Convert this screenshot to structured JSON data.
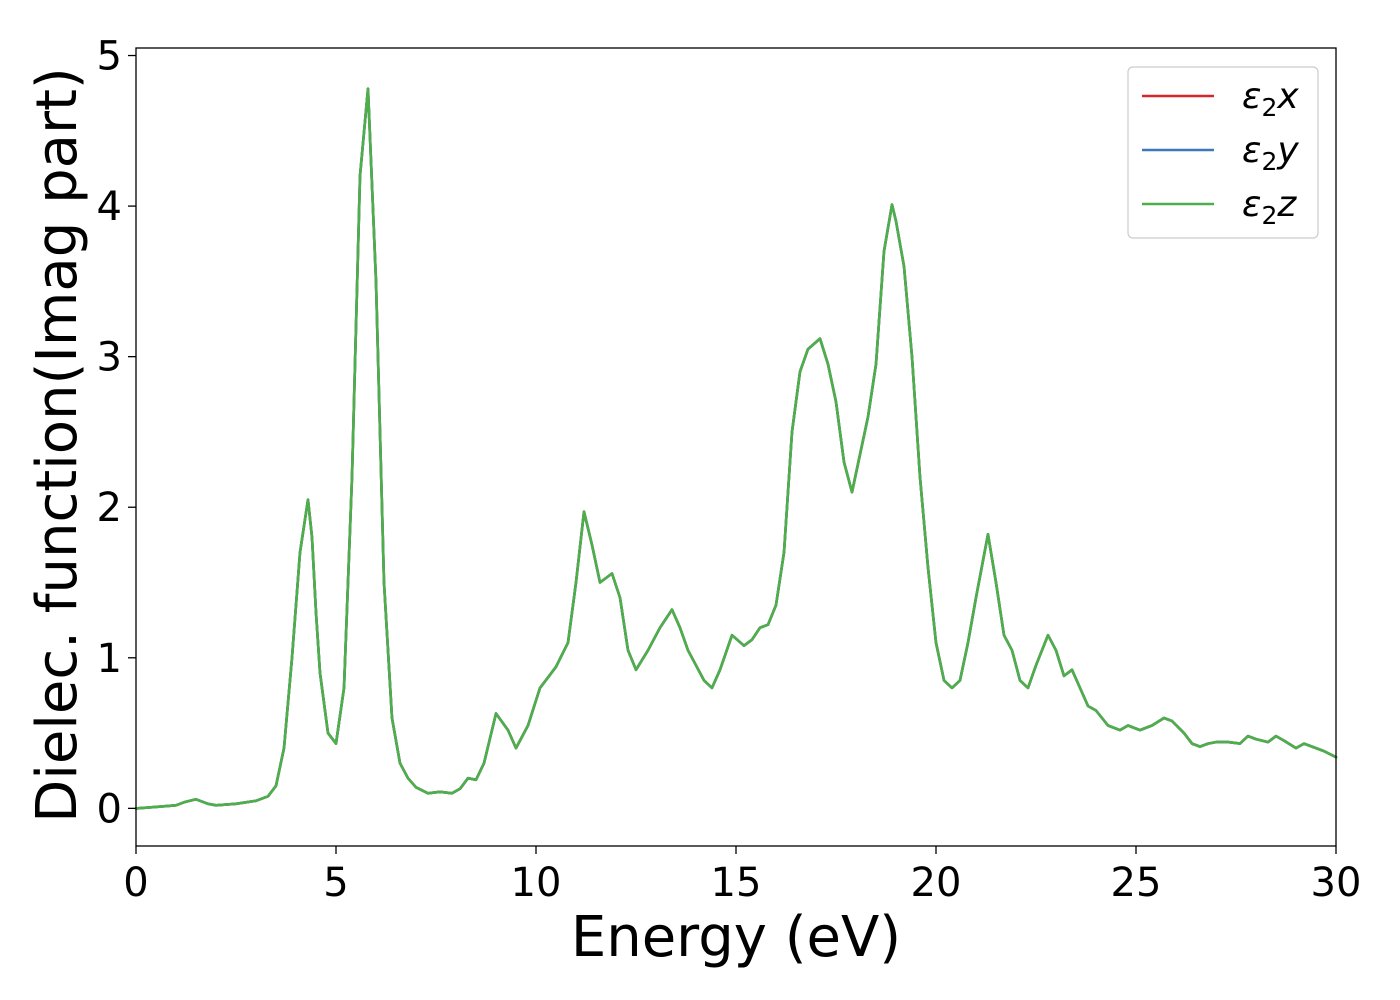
{
  "chart_data": {
    "type": "line",
    "xlabel": "Energy (eV)",
    "ylabel": "Dielec. function(Imag part)",
    "xlim": [
      0,
      30
    ],
    "ylim": [
      -0.25,
      5.05
    ],
    "x_ticks": [
      0,
      5,
      10,
      15,
      20,
      25,
      30
    ],
    "y_ticks": [
      0,
      1,
      2,
      3,
      4,
      5
    ],
    "grid": false,
    "legend_position": "top-right",
    "series": [
      {
        "name": "ε₂x",
        "legend_main": "ε",
        "legend_sub": "2",
        "legend_var": "x",
        "color": "#d62728"
      },
      {
        "name": "ε₂y",
        "legend_main": "ε",
        "legend_sub": "2",
        "legend_var": "y",
        "color": "#3f78b8"
      },
      {
        "name": "ε₂z",
        "legend_main": "ε",
        "legend_sub": "2",
        "legend_var": "z",
        "color": "#4daf4a"
      }
    ],
    "x": [
      0,
      0.5,
      1.0,
      1.2,
      1.5,
      1.8,
      2.0,
      2.5,
      3.0,
      3.3,
      3.5,
      3.7,
      3.9,
      4.1,
      4.3,
      4.4,
      4.5,
      4.6,
      4.8,
      5.0,
      5.2,
      5.4,
      5.6,
      5.8,
      6.0,
      6.2,
      6.4,
      6.6,
      6.8,
      7.0,
      7.3,
      7.6,
      7.9,
      8.1,
      8.3,
      8.5,
      8.7,
      9.0,
      9.3,
      9.5,
      9.8,
      10.1,
      10.3,
      10.5,
      10.8,
      11.0,
      11.2,
      11.4,
      11.6,
      11.9,
      12.1,
      12.3,
      12.5,
      12.8,
      13.1,
      13.4,
      13.6,
      13.8,
      14.0,
      14.2,
      14.4,
      14.6,
      14.9,
      15.2,
      15.4,
      15.6,
      15.8,
      16.0,
      16.2,
      16.4,
      16.6,
      16.8,
      17.1,
      17.3,
      17.5,
      17.7,
      17.9,
      18.1,
      18.3,
      18.5,
      18.7,
      18.9,
      19.0,
      19.2,
      19.4,
      19.6,
      19.8,
      20.0,
      20.2,
      20.4,
      20.6,
      20.8,
      21.0,
      21.3,
      21.5,
      21.7,
      21.9,
      22.1,
      22.3,
      22.5,
      22.8,
      23.0,
      23.2,
      23.4,
      23.6,
      23.8,
      24.0,
      24.3,
      24.6,
      24.8,
      25.1,
      25.4,
      25.7,
      25.9,
      26.2,
      26.4,
      26.6,
      26.8,
      27.0,
      27.3,
      27.6,
      27.8,
      28.0,
      28.3,
      28.5,
      28.7,
      29.0,
      29.2,
      29.4,
      29.7,
      30.0
    ],
    "values": [
      0.0,
      0.01,
      0.02,
      0.04,
      0.06,
      0.03,
      0.02,
      0.03,
      0.05,
      0.08,
      0.15,
      0.4,
      1.0,
      1.7,
      2.05,
      1.8,
      1.3,
      0.9,
      0.5,
      0.43,
      0.8,
      2.2,
      4.2,
      4.78,
      3.5,
      1.5,
      0.6,
      0.3,
      0.2,
      0.14,
      0.1,
      0.11,
      0.1,
      0.13,
      0.2,
      0.19,
      0.3,
      0.63,
      0.52,
      0.4,
      0.55,
      0.8,
      0.87,
      0.94,
      1.1,
      1.5,
      1.97,
      1.75,
      1.5,
      1.56,
      1.4,
      1.05,
      0.92,
      1.05,
      1.2,
      1.32,
      1.2,
      1.05,
      0.95,
      0.85,
      0.8,
      0.92,
      1.15,
      1.08,
      1.12,
      1.2,
      1.22,
      1.35,
      1.7,
      2.5,
      2.9,
      3.05,
      3.12,
      2.95,
      2.7,
      2.3,
      2.1,
      2.35,
      2.6,
      2.95,
      3.7,
      4.01,
      3.9,
      3.6,
      3.0,
      2.2,
      1.6,
      1.1,
      0.85,
      0.8,
      0.85,
      1.1,
      1.4,
      1.82,
      1.5,
      1.15,
      1.05,
      0.85,
      0.8,
      0.95,
      1.15,
      1.05,
      0.88,
      0.92,
      0.8,
      0.68,
      0.65,
      0.55,
      0.52,
      0.55,
      0.52,
      0.55,
      0.6,
      0.58,
      0.5,
      0.43,
      0.41,
      0.43,
      0.44,
      0.44,
      0.43,
      0.48,
      0.46,
      0.44,
      0.48,
      0.45,
      0.4,
      0.43,
      0.41,
      0.38,
      0.34
    ]
  }
}
